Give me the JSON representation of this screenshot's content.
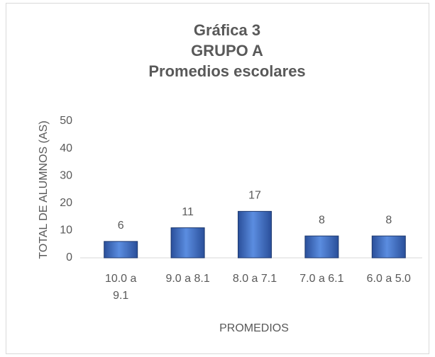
{
  "chart_data": {
    "type": "bar",
    "title": [
      "Gráfica 3",
      "GRUPO A",
      "Promedios escolares"
    ],
    "x_label": "PROMEDIOS",
    "y_label": "TOTAL DE ALUMNOS (AS)",
    "categories": [
      "10.0 a 9.1",
      "9.0 a 8.1",
      "8.0 a 7.1",
      "7.0 a 6.1",
      "6.0 a 5.0"
    ],
    "values": [
      6,
      11,
      17,
      8,
      8
    ],
    "color": "#4472c4",
    "ylim": [
      0,
      50
    ],
    "yticks": [
      0,
      10,
      20,
      30,
      40,
      50
    ],
    "grid": false
  }
}
